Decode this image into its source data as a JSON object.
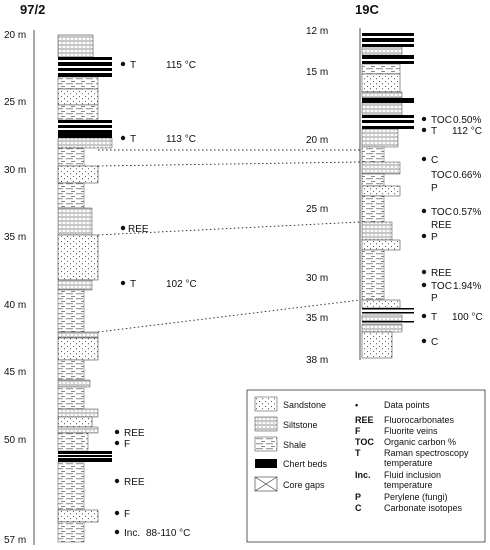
{
  "columns": {
    "left": {
      "title": "97/2",
      "depth_labels": [
        "20 m",
        "25 m",
        "30 m",
        "35 m",
        "40 m",
        "45 m",
        "50 m",
        "57 m"
      ],
      "annotations": [
        {
          "code": "T",
          "value": "115 °C",
          "depth": 22.2
        },
        {
          "code": "T",
          "value": "113 °C",
          "depth": 27.4
        },
        {
          "code": "REE",
          "value": "",
          "depth": 34.1
        },
        {
          "code": "T",
          "value": "102 °C",
          "depth": 38.2
        },
        {
          "code": "REE",
          "value": "",
          "depth": 49.0
        },
        {
          "code": "F",
          "value": "",
          "depth": 49.7
        },
        {
          "code": "REE",
          "value": "",
          "depth": 52.4
        },
        {
          "code": "F",
          "value": "",
          "depth": 54.9
        },
        {
          "code": "Inc.",
          "value": "88-110 °C",
          "depth": 56.2
        }
      ]
    },
    "right": {
      "title": "19C",
      "depth_labels": [
        "12 m",
        "15 m",
        "20 m",
        "25 m",
        "30 m",
        "35 m",
        "38 m"
      ],
      "annotations": [
        {
          "code": "TOC",
          "value": "0.50%",
          "depth": 18.5
        },
        {
          "code": "T",
          "value": "112 °C",
          "depth": 19.2
        },
        {
          "code": "C",
          "value": "",
          "depth": 21.5
        },
        {
          "code": "TOC",
          "value": "0.66%",
          "depth": 22.9
        },
        {
          "code": "P",
          "value": "",
          "depth": 24.0
        },
        {
          "code": "TOC",
          "value": "0.57%",
          "depth": 25.6
        },
        {
          "code": "REE",
          "value": "",
          "depth": 26.8
        },
        {
          "code": "P",
          "value": "",
          "depth": 28.0
        },
        {
          "code": "REE",
          "value": "",
          "depth": 30.2
        },
        {
          "code": "TOC",
          "value": "1.94%",
          "depth": 31.4
        },
        {
          "code": "P",
          "value": "",
          "depth": 32.6
        },
        {
          "code": "T",
          "value": "100 °C",
          "depth": 34.0
        },
        {
          "code": "C",
          "value": "",
          "depth": 36.0
        }
      ]
    }
  },
  "legend": {
    "lithology": [
      {
        "key": "sandstone",
        "label": "Sandstone"
      },
      {
        "key": "siltstone",
        "label": "Siltstone"
      },
      {
        "key": "shale",
        "label": "Shale"
      },
      {
        "key": "chert",
        "label": "Chert beds"
      },
      {
        "key": "gap",
        "label": "Core gaps"
      }
    ],
    "symbols": [
      {
        "code": "•",
        "label": "Data points"
      },
      {
        "code": "REE",
        "label": "Fluorocarbonates"
      },
      {
        "code": "F",
        "label": "Fluorite veins"
      },
      {
        "code": "TOC",
        "label": "Organic carbon %"
      },
      {
        "code": "T",
        "label": "Raman spectroscopy temperature"
      },
      {
        "code": "Inc.",
        "label": "Fluid inclusion temperature"
      },
      {
        "code": "P",
        "label": "Perylene (fungi)"
      },
      {
        "code": "C",
        "label": "Carbonate isotopes"
      }
    ]
  }
}
